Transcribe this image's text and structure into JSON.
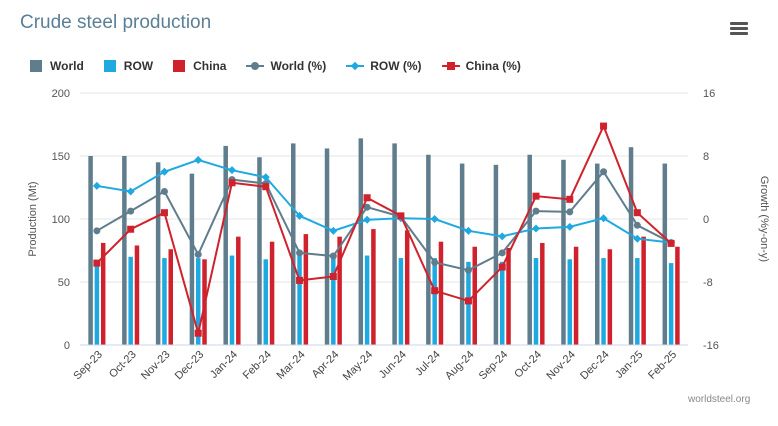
{
  "title": "Crude steel production",
  "credit": "worldsteel.org",
  "legend": {
    "world": "World",
    "row": "ROW",
    "china": "China",
    "world_pct": "World (%)",
    "row_pct": "ROW (%)",
    "china_pct": "China (%)"
  },
  "colors": {
    "world": "#5f7d8c",
    "row": "#1fa9e1",
    "china": "#d0222c"
  },
  "chart_data": {
    "type": "bar",
    "categories": [
      "Sep-23",
      "Oct-23",
      "Nov-23",
      "Dec-23",
      "Jan-24",
      "Feb-24",
      "Mar-24",
      "Apr-24",
      "May-24",
      "Jun-24",
      "Jul-24",
      "Aug-24",
      "Sep-24",
      "Oct-24",
      "Nov-24",
      "Dec-24",
      "Jan-25",
      "Feb-25"
    ],
    "ylabel": "Production (Mt)",
    "y2label": "Growth (%y-on-y)",
    "ylim": [
      0,
      200
    ],
    "yticks": [
      0,
      50,
      100,
      150,
      200
    ],
    "y2lim": [
      -16,
      16
    ],
    "y2ticks": [
      -16,
      -8,
      0,
      8,
      16
    ],
    "grid": true,
    "legend_position": "top-left",
    "series": [
      {
        "name": "World",
        "type": "bar",
        "axis": "left",
        "values": [
          150,
          150,
          145,
          136,
          158,
          149,
          160,
          156,
          164,
          160,
          151,
          144,
          143,
          151,
          147,
          144,
          157,
          144
        ]
      },
      {
        "name": "ROW",
        "type": "bar",
        "axis": "left",
        "values": [
          64,
          70,
          69,
          69,
          71,
          68,
          71,
          70,
          71,
          69,
          69,
          66,
          66,
          69,
          68,
          69,
          69,
          65
        ]
      },
      {
        "name": "China",
        "type": "bar",
        "axis": "left",
        "values": [
          81,
          79,
          76,
          68,
          86,
          82,
          88,
          86,
          92,
          91,
          82,
          78,
          77,
          81,
          78,
          76,
          86,
          78
        ]
      },
      {
        "name": "World (%)",
        "type": "line",
        "axis": "right",
        "values": [
          -1.5,
          1,
          3.5,
          -4.5,
          5,
          4.5,
          -4.3,
          -4.7,
          1.5,
          0.3,
          -5.5,
          -6.5,
          -4.3,
          1,
          0.9,
          6,
          -0.8,
          -3
        ]
      },
      {
        "name": "ROW (%)",
        "type": "line",
        "axis": "right",
        "values": [
          4.2,
          3.5,
          6,
          7.5,
          6.2,
          5.3,
          0.4,
          -1.5,
          -0.1,
          0.1,
          0,
          -1.5,
          -2.2,
          -1.2,
          -1,
          0.1,
          -2.5,
          -3
        ]
      },
      {
        "name": "China (%)",
        "type": "line",
        "axis": "right",
        "values": [
          -5.6,
          -1.3,
          0.8,
          -14.5,
          4.6,
          4.1,
          -7.8,
          -7.3,
          2.7,
          0.4,
          -9.1,
          -10.4,
          -6.1,
          2.9,
          2.5,
          11.8,
          0.8,
          -3.1
        ]
      }
    ]
  }
}
